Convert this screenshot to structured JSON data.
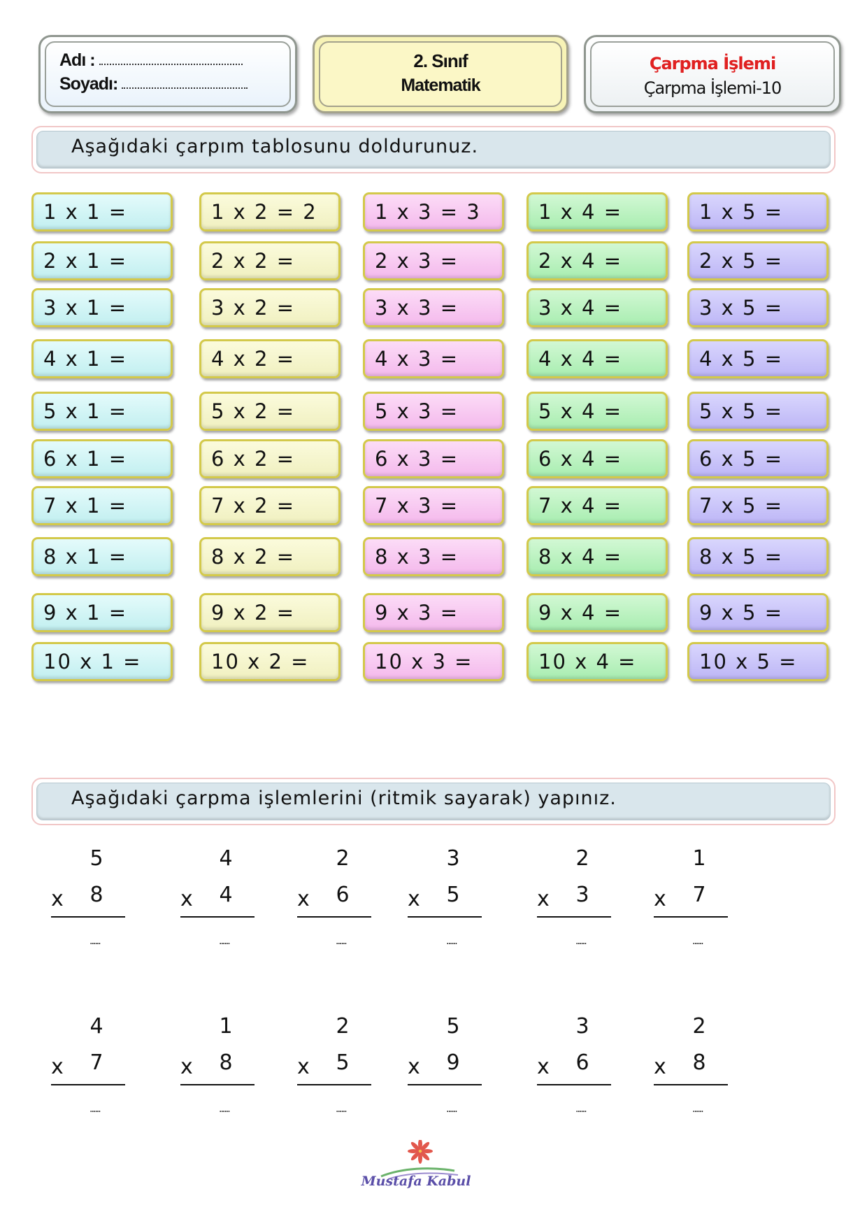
{
  "header": {
    "name_label": "Adı :",
    "surname_label": "Soyadı:",
    "grade": "2. Sınıf",
    "subject": "Matematik",
    "topic": "Çarpma İşlemi",
    "worksheet": "Çarpma İşlemi-10"
  },
  "instructions": {
    "table": "Aşağıdaki çarpım tablosunu doldurunuz.",
    "problems": "Aşağıdaki çarpma işlemlerini (ritmik sayarak) yapınız."
  },
  "table": {
    "columns": [
      [
        "1 x 1 =",
        "2 x 1 =",
        "3 x 1 =",
        "4 x 1 =",
        "5 x 1 =",
        "6 x 1 =",
        "7 x 1 =",
        "8 x 1 =",
        "9 x 1 =",
        "10 x 1 ="
      ],
      [
        "1 x 2 = 2",
        "2 x 2 =",
        "3 x 2 =",
        "4 x 2 =",
        "5 x 2 =",
        "6 x 2 =",
        "7 x 2 =",
        "8 x 2 =",
        "9 x 2 =",
        "10 x 2 ="
      ],
      [
        "1 x 3 = 3",
        "2 x 3 =",
        "3 x 3 =",
        "4 x 3 =",
        "5 x 3 =",
        "6 x 3 =",
        "7 x 3 =",
        "8 x 3 =",
        "9 x 3 =",
        "10 x 3 ="
      ],
      [
        "1 x 4 =",
        "2 x 4 =",
        "3 x 4 =",
        "4 x 4 =",
        "5 x 4 =",
        "6 x 4 =",
        "7 x 4 =",
        "8 x 4 =",
        "9 x 4 =",
        "10 x 4 ="
      ],
      [
        "1 x 5 =",
        "2 x 5 =",
        "3 x 5 =",
        "4 x 5 =",
        "5 x 5 =",
        "6 x 5 =",
        "7 x 5 =",
        "8 x 5 =",
        "9 x 5 =",
        "10 x 5 ="
      ]
    ]
  },
  "problems": [
    {
      "top": "5",
      "bottom": "8"
    },
    {
      "top": "4",
      "bottom": "4"
    },
    {
      "top": "2",
      "bottom": "6"
    },
    {
      "top": "3",
      "bottom": "5"
    },
    {
      "top": "2",
      "bottom": "3"
    },
    {
      "top": "1",
      "bottom": "7"
    },
    {
      "top": "4",
      "bottom": "7"
    },
    {
      "top": "1",
      "bottom": "8"
    },
    {
      "top": "2",
      "bottom": "5"
    },
    {
      "top": "5",
      "bottom": "9"
    },
    {
      "top": "3",
      "bottom": "6"
    },
    {
      "top": "2",
      "bottom": "8"
    }
  ],
  "operator": "x",
  "answer_blank": "......",
  "logo_text": "Mustafa Kabul"
}
